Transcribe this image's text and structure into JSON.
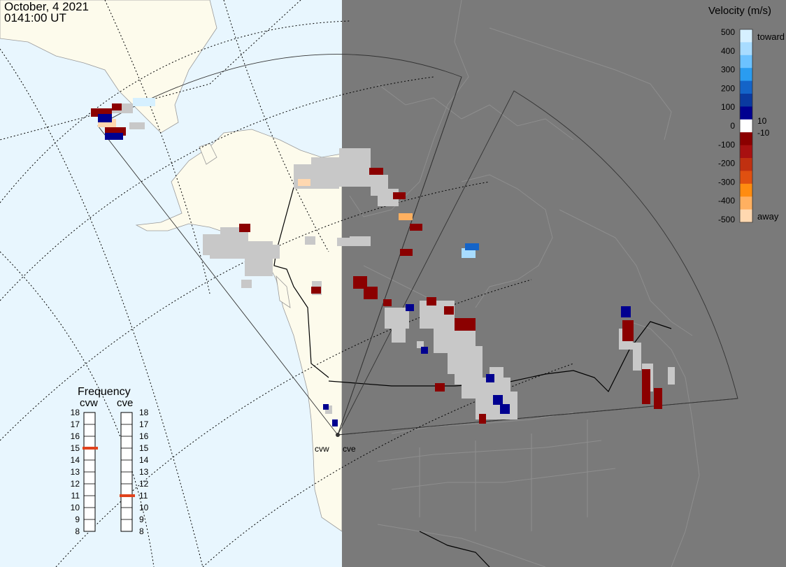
{
  "header": {
    "date": "October, 4 2021",
    "time": "0141:00 UT"
  },
  "radars": {
    "west": "cvw",
    "east": "cve"
  },
  "velocity_scale": {
    "title": "Velocity (m/s)",
    "toward_label": "toward",
    "away_label": "away",
    "ticks": [
      "500",
      "400",
      "300",
      "200",
      "100",
      "0",
      "-100",
      "-200",
      "-300",
      "-400",
      "-500"
    ],
    "inner_labels": [
      "10",
      "-10"
    ],
    "colors": [
      "#d6f0ff",
      "#a8dcff",
      "#6cc2ff",
      "#2a9cf0",
      "#1464c8",
      "#0a3aa0",
      "#000090",
      "#ffffff",
      "#8b0000",
      "#a81010",
      "#c03010",
      "#e05010",
      "#ff8c10",
      "#ffb060",
      "#ffd8b0"
    ]
  },
  "frequency_panel": {
    "title": "Frequency",
    "left_label": "cvw",
    "right_label": "cve",
    "scale": [
      "18",
      "17",
      "16",
      "15",
      "14",
      "13",
      "12",
      "11",
      "10",
      "9",
      "8"
    ],
    "cvw_frequency_mhz": 15,
    "cve_frequency_mhz": 11,
    "marker_color": "#e0421c"
  },
  "colors": {
    "ocean_day": "#e8f6fe",
    "land_day": "#fdfbec",
    "night_side": "#7a7a7a",
    "scatter_gray": "#c8c8c8"
  }
}
